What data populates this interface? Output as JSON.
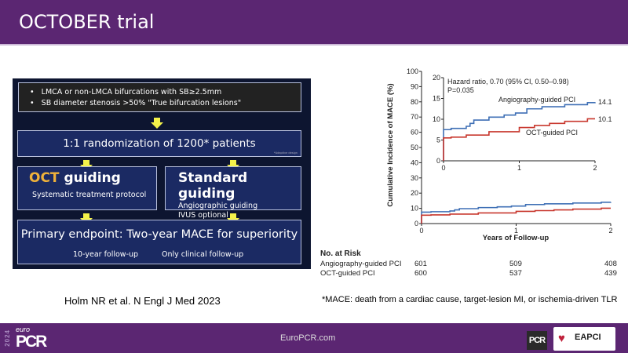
{
  "header": {
    "title": "OCTOBER trial"
  },
  "diagram": {
    "inclusion": [
      "LMCA or non-LMCA bifurcations with SB≥2.5mm",
      "SB diameter stenosis >50%  \"True bifurcation lesions\""
    ],
    "randomization": "1:1 randomization of 1200* patients",
    "randomization_note": "*Adaptive design",
    "arm1": {
      "title_highlight": "OCT",
      "title_rest": " guiding",
      "sub": "Systematic treatment protocol"
    },
    "arm2": {
      "title": "Standard guiding",
      "sub": [
        "Angiographic guiding",
        "IVUS optional"
      ]
    },
    "endpoint": "Primary endpoint: Two-year MACE for superiority",
    "followup": [
      "10-year follow-up",
      "Only clinical follow-up"
    ]
  },
  "citation": "Holm NR et al. N Engl J Med 2023",
  "footnote": "*MACE: death from a cardiac cause, target-lesion MI, or ischemia-driven TLR",
  "chart_data": {
    "type": "line",
    "xlabel": "Years of Follow-up",
    "ylabel": "Cumulative Incidence of MACE (%)",
    "xlim": [
      0,
      2
    ],
    "ylim": [
      0,
      100
    ],
    "xticks": [
      "0",
      "1",
      "2"
    ],
    "yticks": [
      "0",
      "10",
      "20",
      "30",
      "40",
      "50",
      "60",
      "70",
      "80",
      "90",
      "100"
    ],
    "inset": {
      "xlim": [
        0,
        2
      ],
      "ylim": [
        0,
        20
      ],
      "xticks": [
        "0",
        "1",
        "2"
      ],
      "yticks": [
        "0",
        "5",
        "10",
        "15",
        "20"
      ]
    },
    "annotation": [
      "Hazard ratio, 0.70 (95% CI, 0.50–0.98)",
      "P=0.035"
    ],
    "series": [
      {
        "name": "Angiography-guided PCI",
        "color": "#3e6fb5",
        "end_label": "14.1",
        "x": [
          0,
          0,
          0.1,
          0.3,
          0.35,
          0.4,
          0.6,
          0.8,
          0.95,
          1.1,
          1.3,
          1.6,
          1.9,
          2
        ],
        "y": [
          0,
          7.5,
          7.8,
          8.3,
          9,
          9.8,
          10.5,
          11,
          11.5,
          12.5,
          13,
          13.5,
          14,
          14.1
        ]
      },
      {
        "name": "OCT-guided PCI",
        "color": "#c8372d",
        "end_label": "10.1",
        "x": [
          0,
          0,
          0.1,
          0.3,
          0.6,
          1,
          1.2,
          1.4,
          1.6,
          1.9,
          2
        ],
        "y": [
          0,
          5.5,
          5.7,
          6.2,
          7,
          8,
          8.5,
          9,
          9.5,
          10.1,
          10.1
        ]
      }
    ],
    "risk_table": {
      "title": "No. at Risk",
      "times": [
        0,
        1,
        2
      ],
      "rows": [
        {
          "label": "Angiography-guided PCI",
          "values": [
            "601",
            "509",
            "408"
          ]
        },
        {
          "label": "OCT-guided PCI",
          "values": [
            "600",
            "537",
            "439"
          ]
        }
      ]
    }
  },
  "footer": {
    "site": "EuroPCR.com",
    "year": "2024",
    "logo_euro": "euro",
    "logo_pcr": "PCR",
    "pcr_logo": "PCR",
    "eapci": "EAPCI"
  }
}
